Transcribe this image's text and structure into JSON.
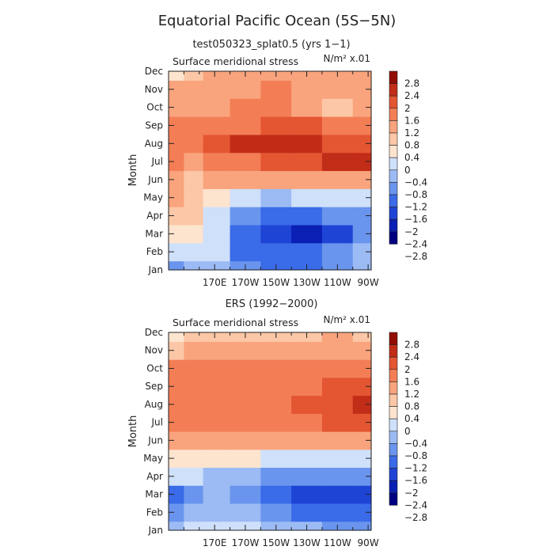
{
  "title": "Equatorial Pacific Ocean (5S−5N)",
  "colors": {
    "levels": [
      "#000080",
      "#0a1fb4",
      "#1e44d6",
      "#3a6be8",
      "#6a95ee",
      "#9cbbf4",
      "#cfe0fa",
      "#fde4cf",
      "#fcc7a6",
      "#f9a47d",
      "#f37e56",
      "#e45532",
      "#c22d18",
      "#920d06"
    ],
    "bounds": [
      -3.2,
      -2.8,
      -2.4,
      -2,
      -1.6,
      -1.2,
      -0.8,
      -0.4,
      0,
      0.4,
      0.8,
      1.2,
      1.6,
      2,
      2.4,
      2.8,
      3.2
    ]
  },
  "colorbar": {
    "labels": [
      "2.8",
      "2.4",
      "2",
      "1.6",
      "1.2",
      "0.8",
      "0.4",
      "0",
      "−0.4",
      "−0.8",
      "−1.2",
      "−1.6",
      "−2",
      "−2.4",
      "−2.8"
    ]
  },
  "chart_data": [
    {
      "type": "heatmap",
      "subtitle": "test050323_splat0.5 (yrs 1−1)",
      "variable": "Surface meridional stress",
      "units": "N/m² x.01",
      "ylabel": "Month",
      "x_ticks": [
        "170E",
        "170W",
        "150W",
        "130W",
        "110W",
        "90W"
      ],
      "y_ticks": [
        "Jan",
        "Feb",
        "Mar",
        "Apr",
        "May",
        "Jun",
        "Jul",
        "Aug",
        "Sep",
        "Oct",
        "Nov",
        "Dec"
      ],
      "x_lon": [
        145,
        155,
        170,
        190,
        210,
        230,
        250,
        270
      ],
      "months": [
        "Jan",
        "Feb",
        "Mar",
        "Apr",
        "May",
        "Jun",
        "Jul",
        "Aug",
        "Sep",
        "Oct",
        "Nov",
        "Dec"
      ],
      "values": [
        [
          -1.6,
          -1.0,
          -1.2,
          -1.6,
          -2.0,
          -1.8,
          -1.4,
          -1.2
        ],
        [
          -0.8,
          -0.5,
          -0.8,
          -1.8,
          -2.0,
          -2.0,
          -1.6,
          -1.0
        ],
        [
          -0.4,
          -0.2,
          -0.6,
          -1.8,
          -2.4,
          -2.6,
          -2.4,
          -1.6
        ],
        [
          0.3,
          0.1,
          -0.5,
          -1.4,
          -1.8,
          -1.8,
          -1.6,
          -1.4
        ],
        [
          0.5,
          0.3,
          -0.2,
          -0.8,
          -1.0,
          -0.8,
          -0.7,
          -0.6
        ],
        [
          0.4,
          0.3,
          0.5,
          0.4,
          0.5,
          0.6,
          0.6,
          0.5
        ],
        [
          0.8,
          0.7,
          0.9,
          1.0,
          1.2,
          1.4,
          1.7,
          1.9
        ],
        [
          1.0,
          1.0,
          1.2,
          1.6,
          1.9,
          1.7,
          1.5,
          1.4
        ],
        [
          0.8,
          0.8,
          0.9,
          1.1,
          1.3,
          1.2,
          1.0,
          0.9
        ],
        [
          0.6,
          0.6,
          0.7,
          0.8,
          0.8,
          0.7,
          0.1,
          0.5
        ],
        [
          0.4,
          0.5,
          0.6,
          0.7,
          0.8,
          0.6,
          0.5,
          0.7
        ],
        [
          -0.2,
          0.3,
          0.4,
          0.6,
          0.7,
          0.6,
          0.4,
          0.6
        ]
      ]
    },
    {
      "type": "heatmap",
      "subtitle": "ERS (1992−2000)",
      "variable": "Surface meridional stress",
      "units": "N/m² x.01",
      "ylabel": "Month",
      "x_ticks": [
        "170E",
        "170W",
        "150W",
        "130W",
        "110W",
        "90W"
      ],
      "y_ticks": [
        "Jan",
        "Feb",
        "Mar",
        "Apr",
        "May",
        "Jun",
        "Jul",
        "Aug",
        "Sep",
        "Oct",
        "Nov",
        "Dec"
      ],
      "x_lon": [
        145,
        155,
        170,
        190,
        210,
        230,
        250,
        270
      ],
      "months": [
        "Jan",
        "Feb",
        "Mar",
        "Apr",
        "May",
        "Jun",
        "Jul",
        "Aug",
        "Sep",
        "Oct",
        "Nov",
        "Dec"
      ],
      "values": [
        [
          -1.2,
          -0.6,
          -0.5,
          -0.8,
          -1.0,
          -1.2,
          -1.4,
          -1.6
        ],
        [
          -1.4,
          -1.0,
          -0.9,
          -1.1,
          -1.5,
          -1.8,
          -1.9,
          -1.9
        ],
        [
          -1.7,
          -1.3,
          -1.0,
          -1.4,
          -1.8,
          -2.2,
          -2.3,
          -2.2
        ],
        [
          -0.8,
          -0.7,
          -0.9,
          -1.2,
          -1.4,
          -1.6,
          -1.6,
          -1.5
        ],
        [
          -0.2,
          -0.2,
          -0.3,
          -0.4,
          -0.5,
          -0.6,
          -0.6,
          -0.5
        ],
        [
          0.5,
          0.5,
          0.5,
          0.6,
          0.5,
          0.4,
          0.5,
          0.6
        ],
        [
          0.8,
          0.9,
          0.9,
          0.9,
          1.0,
          1.1,
          1.3,
          1.5
        ],
        [
          1.0,
          1.0,
          1.0,
          1.0,
          1.1,
          1.2,
          1.4,
          1.6
        ],
        [
          1.1,
          1.0,
          1.0,
          1.0,
          1.0,
          1.1,
          1.2,
          1.3
        ],
        [
          0.8,
          0.9,
          0.9,
          0.9,
          0.9,
          1.0,
          1.1,
          1.1
        ],
        [
          0.3,
          0.4,
          0.5,
          0.5,
          0.6,
          0.7,
          0.7,
          0.7
        ],
        [
          -0.1,
          0.1,
          0.2,
          0.2,
          0.2,
          0.3,
          0.4,
          0.3
        ]
      ]
    }
  ]
}
